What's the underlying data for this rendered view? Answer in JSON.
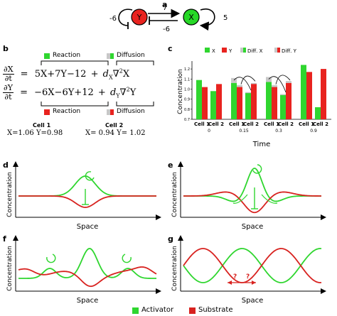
{
  "panel_labels": {
    "a": "a",
    "b": "b",
    "c": "c",
    "d": "d",
    "e": "e",
    "f": "f",
    "g": "g"
  },
  "network": {
    "node_y": "Y",
    "node_x": "X",
    "self_y": "-6",
    "self_x": "5",
    "y_to_x": "7",
    "x_to_y": "-6",
    "colors": {
      "y": "#e8231f",
      "x": "#27d827"
    }
  },
  "equations": {
    "dx_num": "∂X",
    "dx_den": "∂t",
    "dy_num": "∂Y",
    "dy_den": "∂t",
    "eq_sign": "=",
    "x_reaction": "5X+7Y−12",
    "x_plus": "+",
    "x_diff_coef": "d",
    "x_diff_sub": "X",
    "x_diff_op": "∇",
    "x_diff_pow": "2",
    "x_diff_var": "X",
    "y_reaction": "−6X−6Y+12",
    "y_plus": "+",
    "y_diff_coef": "d",
    "y_diff_sub": "Y",
    "y_diff_op": "∇",
    "y_diff_pow": "2",
    "y_diff_var": "Y",
    "reaction_label": "Reaction",
    "diffusion_label": "Diffusion"
  },
  "cells": {
    "cell1_title": "Cell 1",
    "cell1_values": "X=1.06  Y=0.98",
    "cell2_title": "Cell 2",
    "cell2_values": "X= 0.94  Y= 1.02"
  },
  "chart_data": {
    "type": "bar",
    "ylabel": "Concentration",
    "xlabel": "Time",
    "ylim": [
      0.7,
      1.25
    ],
    "yticks": [
      "0.7",
      "0.8",
      "0.9",
      "1.0",
      "1.1",
      "1.2"
    ],
    "legend": [
      "X",
      "Y",
      "Diff. X",
      "Diff. Y"
    ],
    "colors": {
      "X": "#2fd62f",
      "Y": "#e8231f",
      "DiffX": "#c8c8c8",
      "DiffY": "#c8c8c8"
    },
    "groups": [
      {
        "time": "0",
        "cell1": {
          "x": 1.09,
          "y": 1.02
        },
        "cell2": {
          "x": 0.98,
          "y": 1.05
        },
        "arrows": false
      },
      {
        "time": "0.15",
        "cell1": {
          "x": 1.06,
          "y": 1.02,
          "diff_x": 1.11,
          "diff_y": 1.04
        },
        "cell2": {
          "x": 0.96,
          "y": 1.05,
          "diff_x": 0.97,
          "diff_y": 1.06
        },
        "arrows": true
      },
      {
        "time": "0.3",
        "cell1": {
          "x": 1.07,
          "y": 1.02,
          "diff_x": 1.12,
          "diff_y": 1.04
        },
        "cell2": {
          "x": 0.94,
          "y": 1.06,
          "diff_x": 0.95,
          "diff_y": 1.08
        },
        "arrows": true
      },
      {
        "time": "0.9",
        "cell1": {
          "x": 1.24,
          "y": 1.17
        },
        "cell2": {
          "x": 0.82,
          "y": 1.2
        },
        "arrows": false
      }
    ],
    "cell_labels": [
      "Cell 1",
      "Cell 2"
    ]
  },
  "space_plots": {
    "ylabel": "Concentration",
    "xlabel": "Space"
  },
  "legend_bottom": {
    "activator": "Activator",
    "substrate": "Substrate",
    "activator_color": "#2fd62f",
    "substrate_color": "#d8221f"
  },
  "g_marks": {
    "q1": "?",
    "q2": "?"
  }
}
